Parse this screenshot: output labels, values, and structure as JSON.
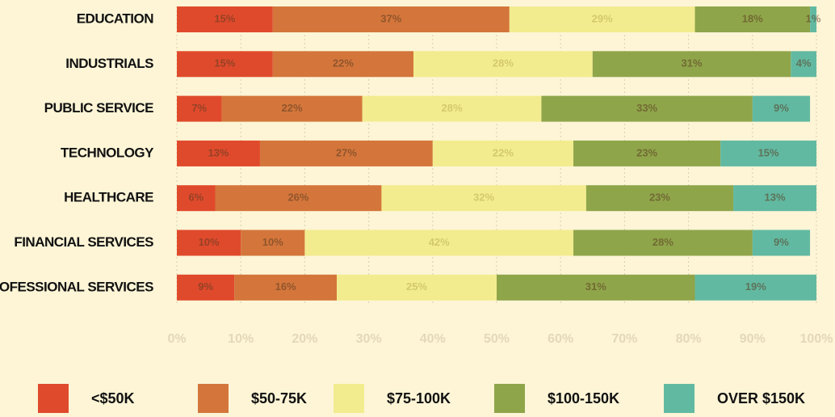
{
  "chart_data": {
    "type": "stacked-bar-horizontal",
    "categories": [
      "EDUCATION",
      "INDUSTRIALS",
      "PUBLIC SERVICE",
      "TECHNOLOGY",
      "HEALTHCARE",
      "FINANCIAL SERVICES",
      "PROFESSIONAL SERVICES"
    ],
    "series": [
      {
        "name": "<$50K",
        "color": "#e04a2c",
        "values": [
          15,
          15,
          7,
          13,
          6,
          10,
          9
        ],
        "value_labels": [
          "15%",
          "15%",
          "7%",
          "13%",
          "6%",
          "10%",
          "9%"
        ]
      },
      {
        "name": "$50-75K",
        "color": "#d4763b",
        "values": [
          37,
          22,
          22,
          27,
          26,
          10,
          16
        ],
        "value_labels": [
          "37%",
          "22%",
          "22%",
          "27%",
          "26%",
          "10%",
          "16%"
        ]
      },
      {
        "name": "$75-100K",
        "color": "#f3ec8f",
        "values": [
          29,
          28,
          28,
          22,
          32,
          42,
          25
        ],
        "value_labels": [
          "29%",
          "28%",
          "28%",
          "22%",
          "32%",
          "42%",
          "25%"
        ]
      },
      {
        "name": "$100-150K",
        "color": "#8fa54a",
        "values": [
          18,
          31,
          33,
          23,
          23,
          28,
          31
        ],
        "value_labels": [
          "18%",
          "31%",
          "33%",
          "23%",
          "23%",
          "28%",
          "31%"
        ]
      },
      {
        "name": "OVER $150K",
        "color": "#62b9a1",
        "values": [
          1,
          4,
          9,
          15,
          13,
          9,
          19
        ],
        "value_labels": [
          "1%",
          "4%",
          "9%",
          "15%",
          "13%",
          "9%",
          "19%"
        ]
      }
    ],
    "xlim": [
      0,
      100
    ],
    "xticks": [
      {
        "value": 0,
        "label": "0%"
      },
      {
        "value": 10,
        "label": "10%"
      },
      {
        "value": 20,
        "label": "20%"
      },
      {
        "value": 30,
        "label": "30%"
      },
      {
        "value": 40,
        "label": "40%"
      },
      {
        "value": 50,
        "label": "50%"
      },
      {
        "value": 60,
        "label": "60%"
      },
      {
        "value": 70,
        "label": "70%"
      },
      {
        "value": 80,
        "label": "80%"
      },
      {
        "value": 90,
        "label": "90%"
      },
      {
        "value": 100,
        "label": "100%"
      }
    ],
    "grid": true,
    "legend": "bottom"
  }
}
